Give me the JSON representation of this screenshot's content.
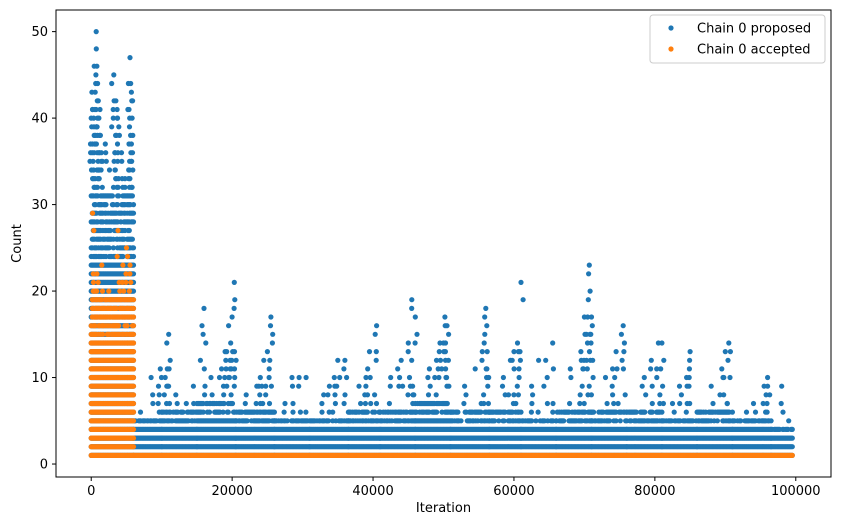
{
  "chart_data": {
    "type": "scatter",
    "xlabel": "Iteration",
    "ylabel": "Count",
    "xlim": [
      -5000,
      105000
    ],
    "ylim": [
      -1.5,
      52.5
    ],
    "xticks": [
      0,
      20000,
      40000,
      60000,
      80000,
      100000
    ],
    "yticks": [
      0,
      10,
      20,
      30,
      40,
      50
    ],
    "legend_position": "top-right",
    "series": [
      {
        "name": "Chain 0 proposed",
        "color": "#1f77b4",
        "description": "dense bands",
        "bands": [
          {
            "x_start": 0,
            "x_end": 6000,
            "y_min": 1,
            "y_max": 31,
            "outliers": [
              [
                100,
                43
              ],
              [
                200,
                41
              ],
              [
                400,
                39
              ],
              [
                700,
                50
              ],
              [
                800,
                46
              ],
              [
                900,
                44
              ],
              [
                1000,
                42
              ],
              [
                1300,
                38
              ],
              [
                2000,
                37
              ],
              [
                3200,
                45
              ],
              [
                3500,
                42
              ],
              [
                3700,
                40
              ],
              [
                4000,
                38
              ],
              [
                4300,
                36
              ],
              [
                5200,
                41
              ],
              [
                5500,
                47
              ],
              [
                5600,
                44
              ],
              [
                5800,
                40
              ],
              [
                5900,
                38
              ],
              [
                1600,
                35
              ],
              [
                2600,
                34
              ],
              [
                4800,
                33
              ],
              [
                300,
                33
              ],
              [
                1100,
                34
              ]
            ]
          },
          {
            "x_start": 6000,
            "x_end": 10000,
            "y_min": 1,
            "y_max": 5,
            "outliers": [
              [
                7000,
                6
              ],
              [
                8500,
                10
              ],
              [
                9500,
                7
              ],
              [
                9800,
                11
              ]
            ]
          },
          {
            "x_start": 10000,
            "x_end": 15000,
            "y_min": 1,
            "y_max": 6,
            "outliers": [
              [
                10500,
                10
              ],
              [
                10800,
                11
              ],
              [
                11000,
                15
              ],
              [
                12000,
                8
              ],
              [
                13500,
                7
              ],
              [
                14500,
                9
              ]
            ]
          },
          {
            "x_start": 15000,
            "x_end": 20500,
            "y_min": 1,
            "y_max": 7,
            "outliers": [
              [
                15500,
                12
              ],
              [
                16000,
                18
              ],
              [
                17000,
                10
              ],
              [
                18500,
                11
              ],
              [
                19000,
                13
              ],
              [
                19500,
                16
              ],
              [
                20000,
                17
              ],
              [
                20300,
                21
              ],
              [
                19800,
                14
              ]
            ]
          },
          {
            "x_start": 20500,
            "x_end": 26000,
            "y_min": 1,
            "y_max": 6,
            "outliers": [
              [
                22000,
                8
              ],
              [
                23500,
                9
              ],
              [
                24500,
                12
              ],
              [
                25000,
                13
              ],
              [
                25500,
                17
              ],
              [
                24000,
                10
              ]
            ]
          },
          {
            "x_start": 26000,
            "x_end": 31000,
            "y_min": 1,
            "y_max": 5,
            "outliers": [
              [
                28500,
                10
              ],
              [
                29500,
                10
              ],
              [
                30500,
                10
              ],
              [
                27500,
                7
              ]
            ]
          },
          {
            "x_start": 31000,
            "x_end": 36500,
            "y_min": 1,
            "y_max": 5,
            "outliers": [
              [
                33000,
                8
              ],
              [
                34500,
                10
              ],
              [
                35000,
                12
              ],
              [
                36000,
                12
              ],
              [
                33800,
                9
              ]
            ]
          },
          {
            "x_start": 36500,
            "x_end": 41000,
            "y_min": 1,
            "y_max": 6,
            "outliers": [
              [
                38000,
                9
              ],
              [
                39500,
                13
              ],
              [
                40500,
                16
              ],
              [
                39000,
                10
              ]
            ]
          },
          {
            "x_start": 41000,
            "x_end": 46000,
            "y_min": 1,
            "y_max": 6,
            "outliers": [
              [
                42500,
                10
              ],
              [
                44000,
                12
              ],
              [
                45000,
                14
              ],
              [
                45500,
                19
              ],
              [
                46000,
                17
              ],
              [
                43500,
                11
              ]
            ]
          },
          {
            "x_start": 46000,
            "x_end": 51000,
            "y_min": 1,
            "y_max": 7,
            "outliers": [
              [
                48000,
                11
              ],
              [
                49500,
                14
              ],
              [
                50200,
                17
              ],
              [
                50500,
                16
              ],
              [
                49000,
                12
              ]
            ]
          },
          {
            "x_start": 51000,
            "x_end": 56500,
            "y_min": 1,
            "y_max": 6,
            "outliers": [
              [
                53000,
                9
              ],
              [
                54500,
                11
              ],
              [
                55500,
                13
              ],
              [
                56000,
                18
              ],
              [
                56200,
                13
              ]
            ]
          },
          {
            "x_start": 56500,
            "x_end": 61000,
            "y_min": 1,
            "y_max": 6,
            "outliers": [
              [
                58500,
                10
              ],
              [
                59500,
                12
              ],
              [
                60500,
                14
              ],
              [
                61000,
                21
              ],
              [
                60000,
                13
              ]
            ]
          },
          {
            "x_start": 61000,
            "x_end": 66000,
            "y_min": 1,
            "y_max": 5,
            "outliers": [
              [
                63500,
                12
              ],
              [
                64500,
                12
              ],
              [
                65500,
                14
              ],
              [
                62500,
                9
              ]
            ]
          },
          {
            "x_start": 66000,
            "x_end": 71000,
            "y_min": 1,
            "y_max": 6,
            "outliers": [
              [
                68000,
                11
              ],
              [
                69500,
                13
              ],
              [
                70000,
                17
              ],
              [
                70700,
                23
              ],
              [
                71000,
                17
              ],
              [
                70300,
                15
              ]
            ]
          },
          {
            "x_start": 71000,
            "x_end": 76000,
            "y_min": 1,
            "y_max": 6,
            "outliers": [
              [
                73000,
                10
              ],
              [
                74500,
                13
              ],
              [
                75500,
                16
              ],
              [
                74000,
                11
              ]
            ]
          },
          {
            "x_start": 76000,
            "x_end": 81000,
            "y_min": 1,
            "y_max": 6,
            "outliers": [
              [
                78500,
                10
              ],
              [
                79500,
                12
              ],
              [
                80500,
                14
              ],
              [
                81000,
                14
              ]
            ]
          },
          {
            "x_start": 81000,
            "x_end": 86000,
            "y_min": 1,
            "y_max": 5,
            "outliers": [
              [
                83500,
                9
              ],
              [
                84500,
                10
              ],
              [
                85000,
                13
              ],
              [
                82500,
                7
              ]
            ]
          },
          {
            "x_start": 86000,
            "x_end": 91000,
            "y_min": 1,
            "y_max": 6,
            "outliers": [
              [
                88000,
                9
              ],
              [
                89500,
                11
              ],
              [
                90500,
                14
              ],
              [
                90000,
                13
              ]
            ]
          },
          {
            "x_start": 91000,
            "x_end": 96500,
            "y_min": 1,
            "y_max": 5,
            "outliers": [
              [
                94000,
                7
              ],
              [
                95500,
                9
              ],
              [
                96000,
                10
              ],
              [
                93000,
                6
              ]
            ]
          },
          {
            "x_start": 96500,
            "x_end": 99500,
            "y_min": 1,
            "y_max": 4,
            "outliers": [
              [
                98000,
                9
              ],
              [
                99000,
                5
              ]
            ]
          }
        ]
      },
      {
        "name": "Chain 0 accepted",
        "color": "#ff7f0e",
        "bands": [
          {
            "x_start": 0,
            "x_end": 6000,
            "y_min": 1,
            "y_max": 19,
            "outliers": [
              [
                200,
                29
              ],
              [
                300,
                22
              ],
              [
                500,
                20
              ],
              [
                800,
                22
              ],
              [
                1500,
                23
              ],
              [
                2500,
                20
              ],
              [
                3800,
                27
              ],
              [
                4500,
                23
              ],
              [
                5000,
                25
              ],
              [
                5500,
                23
              ],
              [
                1200,
                19
              ],
              [
                3200,
                19
              ]
            ]
          },
          {
            "x_start": 6000,
            "x_end": 99500,
            "y_min": 1,
            "y_max": 1,
            "outliers": []
          }
        ]
      }
    ]
  }
}
